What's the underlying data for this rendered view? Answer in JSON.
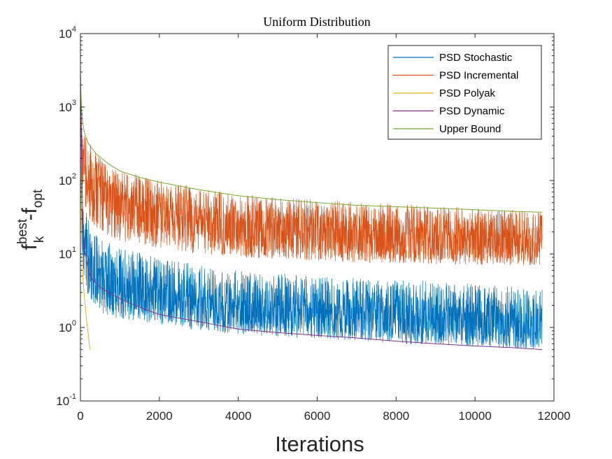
{
  "chart_data": {
    "type": "line",
    "title": "Uniform Distribution",
    "xlabel": "Iterations",
    "ylabel": {
      "base": "f",
      "superscript": "best",
      "subscript": "k",
      "minus": "-f",
      "subscript2": "opt"
    },
    "xlim": [
      0,
      12000
    ],
    "ylim": [
      0.1,
      10000
    ],
    "yscale": "log",
    "xticks": [
      0,
      2000,
      4000,
      6000,
      8000,
      10000,
      12000
    ],
    "xtick_labels": [
      "0",
      "2000",
      "4000",
      "6000",
      "8000",
      "10000",
      "12000"
    ],
    "yticks": [
      {
        "value": 0.1,
        "base": "10",
        "exp": "-1"
      },
      {
        "value": 1,
        "base": "10",
        "exp": "0"
      },
      {
        "value": 10,
        "base": "10",
        "exp": "1"
      },
      {
        "value": 100,
        "base": "10",
        "exp": "2"
      },
      {
        "value": 1000,
        "base": "10",
        "exp": "3"
      },
      {
        "value": 10000,
        "base": "10",
        "exp": "4"
      }
    ],
    "grid": false,
    "legend_position": "top-right",
    "series": [
      {
        "name": "PSD Stochastic",
        "color": "#0072BD",
        "noisy": true,
        "x_end": 11700,
        "trend": [
          [
            0,
            200
          ],
          [
            50,
            25
          ],
          [
            200,
            9
          ],
          [
            500,
            5.5
          ],
          [
            1000,
            4
          ],
          [
            2000,
            3
          ],
          [
            3000,
            2.4
          ],
          [
            4000,
            2
          ],
          [
            6000,
            1.7
          ],
          [
            8000,
            1.5
          ],
          [
            10000,
            1.3
          ],
          [
            11700,
            1.2
          ]
        ],
        "lower": [
          [
            0,
            60
          ],
          [
            50,
            6
          ],
          [
            200,
            2.5
          ],
          [
            500,
            1.6
          ],
          [
            1000,
            1.3
          ],
          [
            2000,
            1.1
          ],
          [
            3000,
            0.9
          ],
          [
            4000,
            0.8
          ],
          [
            6000,
            0.7
          ],
          [
            8000,
            0.6
          ],
          [
            10000,
            0.55
          ],
          [
            11700,
            0.5
          ]
        ],
        "upper": [
          [
            0,
            400
          ],
          [
            50,
            60
          ],
          [
            200,
            30
          ],
          [
            500,
            18
          ],
          [
            1000,
            12
          ],
          [
            2000,
            9
          ],
          [
            3000,
            7
          ],
          [
            4000,
            6
          ],
          [
            6000,
            5
          ],
          [
            8000,
            4.5
          ],
          [
            10000,
            4
          ],
          [
            11700,
            3.5
          ]
        ]
      },
      {
        "name": "PSD Incremental",
        "color": "#D95319",
        "noisy": true,
        "x_end": 11700,
        "trend": [
          [
            0,
            400
          ],
          [
            50,
            250
          ],
          [
            200,
            120
          ],
          [
            500,
            80
          ],
          [
            1000,
            55
          ],
          [
            2000,
            40
          ],
          [
            3000,
            32
          ],
          [
            4000,
            27
          ],
          [
            6000,
            22
          ],
          [
            8000,
            19
          ],
          [
            10000,
            17
          ],
          [
            11700,
            16
          ]
        ],
        "lower": [
          [
            0,
            200
          ],
          [
            50,
            60
          ],
          [
            200,
            30
          ],
          [
            500,
            20
          ],
          [
            1000,
            15
          ],
          [
            2000,
            12
          ],
          [
            3000,
            10
          ],
          [
            4000,
            9
          ],
          [
            6000,
            8
          ],
          [
            8000,
            7.5
          ],
          [
            10000,
            7
          ],
          [
            11700,
            7
          ]
        ],
        "upper": [
          [
            0,
            900
          ],
          [
            50,
            600
          ],
          [
            200,
            350
          ],
          [
            500,
            200
          ],
          [
            1000,
            140
          ],
          [
            2000,
            100
          ],
          [
            3000,
            80
          ],
          [
            4000,
            65
          ],
          [
            6000,
            55
          ],
          [
            8000,
            48
          ],
          [
            10000,
            42
          ],
          [
            11700,
            38
          ]
        ]
      },
      {
        "name": "PSD Polyak",
        "color": "#EDB120",
        "noisy": false,
        "points": [
          [
            0,
            600
          ],
          [
            20,
            60
          ],
          [
            40,
            12
          ],
          [
            60,
            5
          ],
          [
            90,
            3
          ],
          [
            120,
            2
          ],
          [
            160,
            1.2
          ],
          [
            200,
            0.8
          ],
          [
            240,
            0.5
          ]
        ]
      },
      {
        "name": "PSD Dynamic",
        "color": "#7E2F8E",
        "noisy": false,
        "points": [
          [
            0,
            3000
          ],
          [
            15,
            1000
          ],
          [
            30,
            200
          ],
          [
            60,
            30
          ],
          [
            100,
            12
          ],
          [
            200,
            6
          ],
          [
            300,
            4.5
          ],
          [
            500,
            3.5
          ],
          [
            800,
            2.8
          ],
          [
            1200,
            2.2
          ],
          [
            1600,
            1.8
          ],
          [
            2000,
            1.5
          ],
          [
            3000,
            1.2
          ],
          [
            4000,
            0.95
          ],
          [
            5000,
            0.85
          ],
          [
            6000,
            0.78
          ],
          [
            7000,
            0.72
          ],
          [
            8000,
            0.65
          ],
          [
            9000,
            0.6
          ],
          [
            10000,
            0.56
          ],
          [
            11000,
            0.53
          ],
          [
            11700,
            0.5
          ]
        ]
      },
      {
        "name": "Upper Bound",
        "color": "#77AC30",
        "noisy": false,
        "points": [
          [
            0,
            3000
          ],
          [
            15,
            1500
          ],
          [
            30,
            900
          ],
          [
            60,
            600
          ],
          [
            100,
            450
          ],
          [
            200,
            320
          ],
          [
            400,
            230
          ],
          [
            700,
            170
          ],
          [
            1000,
            135
          ],
          [
            1500,
            110
          ],
          [
            2000,
            95
          ],
          [
            3000,
            75
          ],
          [
            4000,
            62
          ],
          [
            5000,
            55
          ],
          [
            6000,
            50
          ],
          [
            7000,
            46
          ],
          [
            8000,
            44
          ],
          [
            9000,
            42
          ],
          [
            10000,
            40
          ],
          [
            11000,
            38
          ],
          [
            11700,
            37
          ]
        ]
      }
    ]
  }
}
